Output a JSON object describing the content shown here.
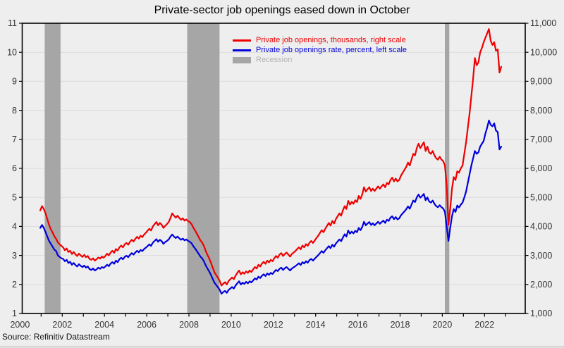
{
  "title": "Private-sector job openings eased down in October",
  "source": "Source: Refinitiv Datastream",
  "colors": {
    "red": "#ee0000",
    "blue": "#0000dd",
    "recession": "#a6a6a6",
    "recession_label": "#b3b3b3",
    "grid": "#dcdcdc",
    "background": "#eeeeee",
    "frame": "#000000",
    "tick_label": "#333333",
    "bottom_rule": "#aaaaaa"
  },
  "legend": {
    "items": [
      {
        "label": "Private job openings, thousands, right scale",
        "color": "#ee0000",
        "swatch": "line"
      },
      {
        "label": "Private job openings rate, percent, left scale",
        "color": "#0000dd",
        "swatch": "line"
      },
      {
        "label": "Recession",
        "color": "#a6a6a6",
        "label_color": "#b3b3b3",
        "swatch": "rect"
      }
    ]
  },
  "chart_data": {
    "type": "line",
    "title": "Private-sector job openings eased down in October",
    "frequency": "monthly",
    "x_start": "2000-12",
    "x_end": "2022-10",
    "x_axis": {
      "min_year": 2000,
      "max_year": 2023,
      "tick_years": [
        2000,
        2001,
        2002,
        2003,
        2004,
        2005,
        2006,
        2007,
        2008,
        2009,
        2010,
        2011,
        2012,
        2013,
        2014,
        2015,
        2016,
        2017,
        2018,
        2019,
        2020,
        2021,
        2022,
        2023
      ],
      "label_years": [
        2000,
        2002,
        2004,
        2006,
        2008,
        2010,
        2012,
        2014,
        2016,
        2018,
        2020,
        2022
      ],
      "labels": [
        "2000",
        "2002",
        "2004",
        "2006",
        "2008",
        "2010",
        "2012",
        "2014",
        "2016",
        "2018",
        "2020",
        "2022"
      ]
    },
    "y_left": {
      "title": "Private job openings rate, percent",
      "min": 1,
      "max": 11,
      "ticks": [
        1,
        2,
        3,
        4,
        5,
        6,
        7,
        8,
        9,
        10,
        11
      ],
      "labels": [
        "1",
        "2",
        "3",
        "4",
        "5",
        "6",
        "7",
        "8",
        "9",
        "10",
        "11"
      ]
    },
    "y_right": {
      "title": "Private job openings, thousands",
      "min": 1000,
      "max": 11000,
      "ticks": [
        1000,
        2000,
        3000,
        4000,
        5000,
        6000,
        7000,
        8000,
        9000,
        10000,
        11000
      ],
      "labels": [
        "1,000",
        "2,000",
        "3,000",
        "4,000",
        "5,000",
        "6,000",
        "7,000",
        "8,000",
        "9,000",
        "10,000",
        "11,000"
      ]
    },
    "recessions": [
      {
        "start": 2001.17,
        "end": 2001.92
      },
      {
        "start": 2007.92,
        "end": 2009.45
      },
      {
        "start": 2020.12,
        "end": 2020.33
      }
    ],
    "series": [
      {
        "name": "Private job openings, thousands, right scale",
        "color": "#ee0000",
        "axis": "right",
        "unit": "thousands",
        "values": [
          4550,
          4700,
          4600,
          4450,
          4250,
          4050,
          3900,
          3790,
          3660,
          3570,
          3450,
          3380,
          3330,
          3280,
          3180,
          3240,
          3120,
          3160,
          3050,
          3120,
          3040,
          2980,
          3060,
          3000,
          2950,
          3020,
          2940,
          2980,
          2880,
          2850,
          2900,
          2820,
          2870,
          2930,
          2890,
          2960,
          2920,
          2980,
          3060,
          3000,
          3100,
          3160,
          3090,
          3220,
          3170,
          3280,
          3340,
          3280,
          3380,
          3430,
          3370,
          3470,
          3540,
          3480,
          3570,
          3640,
          3580,
          3680,
          3630,
          3720,
          3780,
          3850,
          3920,
          3860,
          4000,
          4080,
          4150,
          4040,
          4120,
          4060,
          3950,
          4020,
          4080,
          4150,
          4290,
          4450,
          4370,
          4300,
          4370,
          4290,
          4230,
          4280,
          4200,
          4240,
          4180,
          4150,
          4080,
          3960,
          3860,
          3750,
          3640,
          3520,
          3450,
          3330,
          3160,
          3020,
          2900,
          2750,
          2580,
          2420,
          2320,
          2230,
          2120,
          1960,
          2030,
          2080,
          2000,
          2120,
          2180,
          2240,
          2180,
          2300,
          2400,
          2480,
          2350,
          2420,
          2370,
          2450,
          2400,
          2480,
          2430,
          2520,
          2600,
          2550,
          2680,
          2620,
          2720,
          2780,
          2710,
          2820,
          2760,
          2850,
          2800,
          2900,
          2980,
          2920,
          3030,
          3080,
          2980,
          3050,
          3100,
          3030,
          2960,
          3050,
          3100,
          3150,
          3220,
          3280,
          3210,
          3340,
          3280,
          3390,
          3330,
          3440,
          3500,
          3430,
          3520,
          3600,
          3680,
          3780,
          3870,
          3800,
          3920,
          4020,
          4120,
          4030,
          4190,
          4100,
          4250,
          4350,
          4450,
          4370,
          4550,
          4700,
          4600,
          4880,
          4750,
          4850,
          4780,
          4900,
          4840,
          5050,
          4950,
          5100,
          5350,
          5200,
          5280,
          5350,
          5220,
          5300,
          5220,
          5300,
          5380,
          5300,
          5380,
          5450,
          5350,
          5500,
          5450,
          5600,
          5680,
          5550,
          5650,
          5550,
          5600,
          5750,
          5850,
          5950,
          6050,
          6200,
          6100,
          6300,
          6500,
          6450,
          6700,
          6850,
          6700,
          6800,
          6900,
          6600,
          6750,
          6550,
          6500,
          6600,
          6450,
          6350,
          6300,
          6400,
          6300,
          6250,
          6100,
          5400,
          4050,
          4600,
          5300,
          5700,
          5600,
          5900,
          5850,
          6000,
          6100,
          6500,
          6900,
          7400,
          7900,
          8500,
          9100,
          9800,
          9550,
          9650,
          10000,
          10150,
          10350,
          10500,
          10650,
          10800,
          10400,
          10250,
          10350,
          10050,
          10100,
          9300,
          9500
        ]
      },
      {
        "name": "Private job openings rate, percent, left scale",
        "color": "#0000dd",
        "axis": "left",
        "unit": "percent",
        "values": [
          3.95,
          4.05,
          3.95,
          3.8,
          3.65,
          3.5,
          3.4,
          3.3,
          3.2,
          3.15,
          3.0,
          2.95,
          2.9,
          2.88,
          2.8,
          2.85,
          2.74,
          2.78,
          2.68,
          2.74,
          2.67,
          2.62,
          2.7,
          2.64,
          2.6,
          2.65,
          2.58,
          2.62,
          2.53,
          2.5,
          2.55,
          2.48,
          2.52,
          2.58,
          2.54,
          2.6,
          2.57,
          2.62,
          2.68,
          2.63,
          2.72,
          2.77,
          2.71,
          2.82,
          2.77,
          2.87,
          2.92,
          2.87,
          2.95,
          2.99,
          2.94,
          3.02,
          3.08,
          3.03,
          3.1,
          3.16,
          3.11,
          3.19,
          3.15,
          3.22,
          3.27,
          3.32,
          3.38,
          3.33,
          3.44,
          3.5,
          3.56,
          3.47,
          3.54,
          3.49,
          3.4,
          3.46,
          3.5,
          3.55,
          3.65,
          3.72,
          3.65,
          3.6,
          3.65,
          3.59,
          3.54,
          3.58,
          3.52,
          3.55,
          3.5,
          3.47,
          3.42,
          3.32,
          3.24,
          3.15,
          3.06,
          2.96,
          2.9,
          2.8,
          2.66,
          2.55,
          2.45,
          2.33,
          2.19,
          2.06,
          1.98,
          1.9,
          1.81,
          1.68,
          1.74,
          1.78,
          1.71,
          1.81,
          1.86,
          1.91,
          1.86,
          1.96,
          2.04,
          2.11,
          2.0,
          2.06,
          2.02,
          2.09,
          2.04,
          2.11,
          2.07,
          2.14,
          2.21,
          2.17,
          2.27,
          2.22,
          2.3,
          2.35,
          2.29,
          2.38,
          2.33,
          2.4,
          2.36,
          2.44,
          2.5,
          2.46,
          2.54,
          2.58,
          2.5,
          2.56,
          2.6,
          2.54,
          2.48,
          2.55,
          2.59,
          2.63,
          2.68,
          2.73,
          2.67,
          2.77,
          2.72,
          2.8,
          2.75,
          2.84,
          2.88,
          2.82,
          2.89,
          2.95,
          3.01,
          3.08,
          3.15,
          3.09,
          3.18,
          3.25,
          3.32,
          3.25,
          3.37,
          3.3,
          3.41,
          3.48,
          3.55,
          3.49,
          3.62,
          3.73,
          3.65,
          3.86,
          3.75,
          3.82,
          3.76,
          3.85,
          3.8,
          3.95,
          3.87,
          3.98,
          4.16,
          4.04,
          4.1,
          4.15,
          4.05,
          4.11,
          4.04,
          4.1,
          4.16,
          4.09,
          4.15,
          4.2,
          4.12,
          4.23,
          4.19,
          4.3,
          4.35,
          4.25,
          4.32,
          4.24,
          4.28,
          4.38,
          4.45,
          4.52,
          4.59,
          4.69,
          4.61,
          4.75,
          4.89,
          4.84,
          5.0,
          5.1,
          4.99,
          5.05,
          5.12,
          4.9,
          5.0,
          4.86,
          4.82,
          4.89,
          4.78,
          4.7,
          4.66,
          4.73,
          4.66,
          4.62,
          4.5,
          4.0,
          3.5,
          3.95,
          4.35,
          4.6,
          4.5,
          4.72,
          4.65,
          4.75,
          4.82,
          5.0,
          5.2,
          5.5,
          5.8,
          6.1,
          6.35,
          6.6,
          6.5,
          6.55,
          6.75,
          6.85,
          6.95,
          7.2,
          7.4,
          7.65,
          7.5,
          7.45,
          7.55,
          7.3,
          7.25,
          6.65,
          6.75
        ]
      }
    ]
  }
}
